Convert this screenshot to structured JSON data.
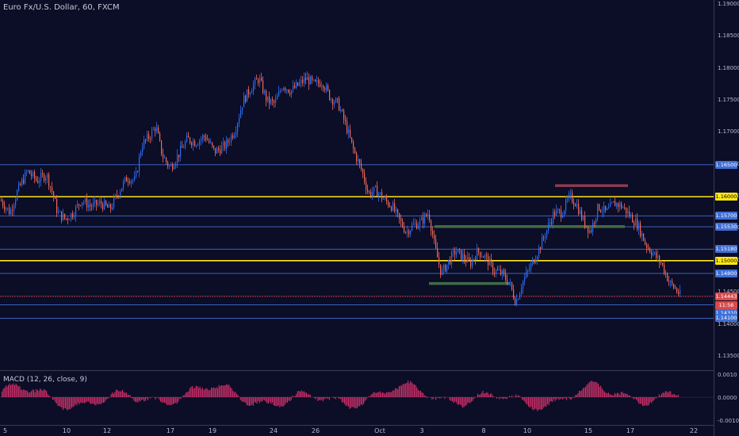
{
  "title": "Euro Fx/U.S. Dollar, 60, FXCM",
  "macd_label": "MACD (12, 26, close, 9)",
  "colors": {
    "background": "#0c0d26",
    "candle_up": "#2e6cf0",
    "candle_down": "#f06a5a",
    "level_blue": "#3f6fd6",
    "level_yellow": "#ffe814",
    "level_red": "#d94a4a",
    "zone_green": "#3f6b45",
    "zone_red": "#8a3d4e",
    "macd_hist": "#d0306a"
  },
  "price_axis": [
    "1.19000",
    "1.18500",
    "1.18000",
    "1.17500",
    "1.17000",
    "1.16500",
    "1.16000",
    "1.15500",
    "1.15000",
    "1.14500",
    "1.14000",
    "1.13500"
  ],
  "macd_axis": [
    "0.0010",
    "0.0000",
    "-0.0010"
  ],
  "time_axis": [
    "5",
    "10",
    "12",
    "17",
    "19",
    "24",
    "26",
    "Oct",
    "3",
    "8",
    "10",
    "15",
    "17",
    "22"
  ],
  "level_tags": [
    {
      "text": "1.16500",
      "color": "blue"
    },
    {
      "text": "1.16000",
      "color": "yellow"
    },
    {
      "text": "1.15700",
      "color": "blue"
    },
    {
      "text": "1.15530",
      "color": "blue"
    },
    {
      "text": "1.15180",
      "color": "blue"
    },
    {
      "text": "1.15000",
      "color": "yellow"
    },
    {
      "text": "1.14800",
      "color": "blue"
    },
    {
      "text": "1.14443",
      "color": "red"
    },
    {
      "text": "11:56",
      "color": "red"
    },
    {
      "text": "1.14310",
      "color": "blue"
    },
    {
      "text": "1.14100",
      "color": "blue"
    }
  ],
  "chart_data": {
    "type": "candlestick",
    "symbol": "Euro Fx/U.S. Dollar",
    "timeframe": "60",
    "ylim": [
      1.1335,
      1.19
    ],
    "horizontal_levels": [
      {
        "price": 1.165,
        "color": "blue"
      },
      {
        "price": 1.16,
        "color": "yellow"
      },
      {
        "price": 1.157,
        "color": "blue"
      },
      {
        "price": 1.1553,
        "color": "blue"
      },
      {
        "price": 1.1518,
        "color": "blue"
      },
      {
        "price": 1.15,
        "color": "yellow"
      },
      {
        "price": 1.148,
        "color": "blue"
      },
      {
        "price": 1.14443,
        "color": "red"
      },
      {
        "price": 1.1431,
        "color": "blue"
      },
      {
        "price": 1.141,
        "color": "blue"
      }
    ],
    "close_path": [
      [
        0,
        1.1595
      ],
      [
        12,
        1.1575
      ],
      [
        22,
        1.161
      ],
      [
        34,
        1.164
      ],
      [
        46,
        1.1625
      ],
      [
        58,
        1.1635
      ],
      [
        66,
        1.1605
      ],
      [
        72,
        1.1575
      ],
      [
        82,
        1.1565
      ],
      [
        92,
        1.1575
      ],
      [
        102,
        1.1595
      ],
      [
        114,
        1.1585
      ],
      [
        126,
        1.159
      ],
      [
        138,
        1.158
      ],
      [
        150,
        1.161
      ],
      [
        160,
        1.163
      ],
      [
        170,
        1.1625
      ],
      [
        178,
        1.168
      ],
      [
        188,
        1.1695
      ],
      [
        196,
        1.171
      ],
      [
        204,
        1.1665
      ],
      [
        214,
        1.1645
      ],
      [
        224,
        1.1665
      ],
      [
        236,
        1.169
      ],
      [
        246,
        1.1685
      ],
      [
        258,
        1.1695
      ],
      [
        270,
        1.167
      ],
      [
        284,
        1.168
      ],
      [
        296,
        1.1705
      ],
      [
        306,
        1.175
      ],
      [
        316,
        1.177
      ],
      [
        326,
        1.1785
      ],
      [
        336,
        1.175
      ],
      [
        346,
        1.1745
      ],
      [
        356,
        1.1775
      ],
      [
        366,
        1.1765
      ],
      [
        376,
        1.1775
      ],
      [
        386,
        1.1785
      ],
      [
        396,
        1.1775
      ],
      [
        406,
        1.178
      ],
      [
        416,
        1.1755
      ],
      [
        426,
        1.1745
      ],
      [
        436,
        1.171
      ],
      [
        446,
        1.167
      ],
      [
        456,
        1.164
      ],
      [
        464,
        1.1605
      ],
      [
        474,
        1.161
      ],
      [
        484,
        1.1595
      ],
      [
        494,
        1.1585
      ],
      [
        502,
        1.1565
      ],
      [
        512,
        1.1545
      ],
      [
        520,
        1.1555
      ],
      [
        530,
        1.156
      ],
      [
        540,
        1.1575
      ],
      [
        548,
        1.152
      ],
      [
        556,
        1.148
      ],
      [
        566,
        1.15
      ],
      [
        574,
        1.1515
      ],
      [
        584,
        1.1505
      ],
      [
        592,
        1.1495
      ],
      [
        602,
        1.1515
      ],
      [
        612,
        1.1505
      ],
      [
        622,
        1.1485
      ],
      [
        632,
        1.148
      ],
      [
        642,
        1.1465
      ],
      [
        650,
        1.1435
      ],
      [
        658,
        1.1465
      ],
      [
        668,
        1.149
      ],
      [
        678,
        1.1515
      ],
      [
        688,
        1.1545
      ],
      [
        698,
        1.1575
      ],
      [
        708,
        1.1575
      ],
      [
        718,
        1.16
      ],
      [
        726,
        1.159
      ],
      [
        734,
        1.1565
      ],
      [
        744,
        1.1545
      ],
      [
        754,
        1.1585
      ],
      [
        764,
        1.1575
      ],
      [
        774,
        1.159
      ],
      [
        784,
        1.1585
      ],
      [
        794,
        1.157
      ],
      [
        804,
        1.1555
      ],
      [
        814,
        1.1525
      ],
      [
        824,
        1.151
      ],
      [
        834,
        1.1495
      ],
      [
        844,
        1.1465
      ],
      [
        852,
        1.1455
      ],
      [
        858,
        1.14443
      ]
    ]
  }
}
